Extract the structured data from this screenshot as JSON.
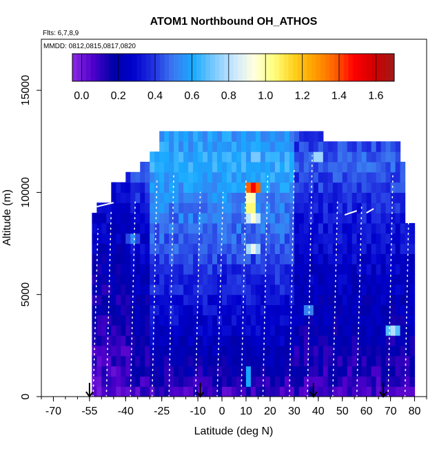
{
  "chart_data": {
    "type": "heatmap",
    "title": "ATOM1 Northbound OH_ATHOS",
    "notes": [
      "Flts: 6,7,8,9",
      "MMDD: 0812,0815,0817,0820"
    ],
    "xlabel": "Latitude (deg N)",
    "ylabel": "Altitude (m)",
    "xlim": [
      -75,
      85
    ],
    "ylim": [
      0,
      17500
    ],
    "x_ticks": [
      -70,
      -55,
      -40,
      -25,
      -10,
      0,
      10,
      20,
      30,
      40,
      50,
      60,
      70,
      80
    ],
    "x_ticklabels": [
      "-70",
      "-55",
      "-40",
      "-25",
      "-10",
      "0",
      "10",
      "20",
      "30",
      "40",
      "50",
      "60",
      "70",
      "80"
    ],
    "x_minor_step": 5,
    "y_ticks": [
      0,
      5000,
      10000,
      15000
    ],
    "y_ticklabels": [
      "0",
      "5000",
      "10000",
      "15000"
    ],
    "colorbar": {
      "min": -0.05,
      "max": 1.7,
      "ticks": [
        0.0,
        0.2,
        0.4,
        0.6,
        0.8,
        1.0,
        1.2,
        1.4,
        1.6
      ],
      "ticklabels": [
        "0.0",
        "0.2",
        "0.4",
        "0.6",
        "0.8",
        "1.0",
        "1.2",
        "1.4",
        "1.6"
      ],
      "colors": [
        "#8a2be2",
        "#5000cc",
        "#0000a8",
        "#0000cc",
        "#2030e0",
        "#3c78f0",
        "#17aaff",
        "#78c8ff",
        "#c8e6ff",
        "#ffffe0",
        "#ffff80",
        "#ffd21e",
        "#ffa000",
        "#ff6400",
        "#ff0000",
        "#d00000",
        "#a01a1a"
      ]
    },
    "flight_markers_lat": [
      -55,
      -9,
      38,
      67
    ],
    "profiles": [
      {
        "lat0": -53.5,
        "lat1": -51.5,
        "alt_top": 8200
      },
      {
        "lat0": -48,
        "lat1": -46,
        "alt_top": 9100
      },
      {
        "lat0": -38,
        "lat1": -36,
        "alt_top": 9700
      },
      {
        "lat0": -29,
        "lat1": -27,
        "alt_top": 10600
      },
      {
        "lat0": -22,
        "lat1": -20,
        "alt_top": 11000
      },
      {
        "lat0": -11,
        "lat1": -9,
        "alt_top": 10000
      },
      {
        "lat0": -2,
        "lat1": 0.5,
        "alt_top": 10000
      },
      {
        "lat0": 8,
        "lat1": 10,
        "alt_top": 10700
      },
      {
        "lat0": 17,
        "lat1": 19,
        "alt_top": 10800
      },
      {
        "lat0": 28,
        "lat1": 30,
        "alt_top": 11200
      },
      {
        "lat0": 35.5,
        "lat1": 37.5,
        "alt_top": 11800
      },
      {
        "lat0": 46,
        "lat1": 48,
        "alt_top": 9600
      },
      {
        "lat0": 56,
        "lat1": 58,
        "alt_top": 9300
      },
      {
        "lat0": 69,
        "lat1": 71,
        "alt_top": 11000
      },
      {
        "lat0": 76,
        "lat1": 78,
        "alt_top": 11500
      }
    ],
    "level_flights": [
      {
        "lat0": -52,
        "lat1": -45,
        "alt": 9300
      },
      {
        "lat0": 51,
        "lat1": 56,
        "alt": 8900
      },
      {
        "lat0": 60,
        "lat1": 63,
        "alt": 9000
      }
    ],
    "envelope_top": [
      [
        -54,
        8800
      ],
      [
        -52,
        8800
      ],
      [
        -52,
        9100
      ],
      [
        -49,
        9100
      ],
      [
        -49,
        9500
      ],
      [
        -45,
        9500
      ],
      [
        -45,
        10400
      ],
      [
        -40,
        10400
      ],
      [
        -40,
        11000
      ],
      [
        -34,
        11000
      ],
      [
        -34,
        11500
      ],
      [
        -30,
        11500
      ],
      [
        -30,
        12000
      ],
      [
        -26,
        12000
      ],
      [
        -26,
        12600
      ],
      [
        -22,
        12600
      ],
      [
        -22,
        12900
      ],
      [
        38,
        12900
      ],
      [
        38,
        12600
      ],
      [
        42,
        12600
      ],
      [
        42,
        12100
      ],
      [
        75,
        12100
      ],
      [
        75,
        11400
      ],
      [
        77,
        11400
      ],
      [
        77,
        8500
      ],
      [
        80,
        8500
      ],
      [
        80,
        0
      ]
    ],
    "altitude_band_mean": [
      [
        500,
        0.1
      ],
      [
        1500,
        0.15
      ],
      [
        2500,
        0.18
      ],
      [
        3500,
        0.22
      ],
      [
        4500,
        0.24
      ],
      [
        5500,
        0.27
      ],
      [
        6500,
        0.3
      ],
      [
        7500,
        0.34
      ],
      [
        8500,
        0.37
      ],
      [
        9500,
        0.4
      ],
      [
        10500,
        0.45
      ],
      [
        11500,
        0.5
      ],
      [
        12500,
        0.45
      ]
    ],
    "hotspots": [
      {
        "lat": 13,
        "alt": 10200,
        "value": 1.5
      },
      {
        "lat": 13,
        "alt": 8700,
        "value": 0.95
      },
      {
        "lat": 13,
        "alt": 7300,
        "value": 0.9
      },
      {
        "lat": 12,
        "alt": 9400,
        "value": 1.1
      },
      {
        "lat": -37,
        "alt": 7800,
        "value": 0.55
      },
      {
        "lat": 14,
        "alt": 11700,
        "value": 0.75
      },
      {
        "lat": 40,
        "alt": 11700,
        "value": 0.8
      },
      {
        "lat": 71,
        "alt": 3300,
        "value": 0.8
      },
      {
        "lat": 36,
        "alt": 4200,
        "value": 0.55
      },
      {
        "lat": 11,
        "alt": 1000,
        "value": 0.65
      }
    ]
  }
}
